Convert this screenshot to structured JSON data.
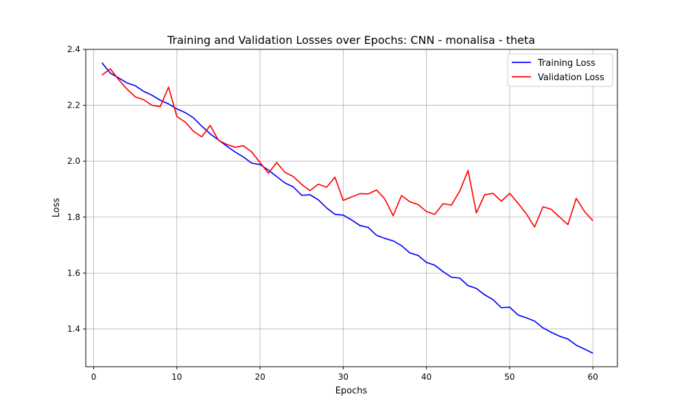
{
  "chart_data": {
    "type": "line",
    "title": "Training and Validation Losses over Epochs: CNN - monalisa - theta",
    "xlabel": "Epochs",
    "ylabel": "Loss",
    "xlim": [
      -0.95,
      62.95
    ],
    "ylim": [
      1.265,
      2.4
    ],
    "xticks": [
      0,
      10,
      20,
      30,
      40,
      50,
      60
    ],
    "yticks": [
      1.4,
      1.6,
      1.8,
      2.0,
      2.2,
      2.4
    ],
    "ytick_labels": [
      "1.4",
      "1.6",
      "1.8",
      "2.0",
      "2.2",
      "2.4"
    ],
    "grid": true,
    "legend_position": "top-right",
    "x": [
      1,
      2,
      3,
      4,
      5,
      6,
      7,
      8,
      9,
      10,
      11,
      12,
      13,
      14,
      15,
      16,
      17,
      18,
      19,
      20,
      21,
      22,
      23,
      24,
      25,
      26,
      27,
      28,
      29,
      30,
      31,
      32,
      33,
      34,
      35,
      36,
      37,
      38,
      39,
      40,
      41,
      42,
      43,
      44,
      45,
      46,
      47,
      48,
      49,
      50,
      51,
      52,
      53,
      54,
      55,
      56,
      57,
      58,
      59,
      60
    ],
    "series": [
      {
        "name": "Training Loss",
        "color": "#0000ff",
        "values": [
          2.352,
          2.315,
          2.298,
          2.28,
          2.27,
          2.25,
          2.236,
          2.218,
          2.205,
          2.187,
          2.174,
          2.155,
          2.125,
          2.098,
          2.076,
          2.054,
          2.033,
          2.015,
          1.993,
          1.988,
          1.968,
          1.945,
          1.922,
          1.908,
          1.878,
          1.88,
          1.862,
          1.833,
          1.81,
          1.807,
          1.79,
          1.77,
          1.763,
          1.735,
          1.724,
          1.715,
          1.698,
          1.672,
          1.663,
          1.638,
          1.628,
          1.605,
          1.585,
          1.582,
          1.555,
          1.545,
          1.522,
          1.505,
          1.476,
          1.478,
          1.45,
          1.44,
          1.428,
          1.404,
          1.388,
          1.374,
          1.364,
          1.342,
          1.328,
          1.313
        ]
      },
      {
        "name": "Validation Loss",
        "color": "#ff0000",
        "values": [
          2.308,
          2.33,
          2.292,
          2.258,
          2.23,
          2.22,
          2.2,
          2.195,
          2.265,
          2.16,
          2.14,
          2.107,
          2.087,
          2.128,
          2.075,
          2.06,
          2.05,
          2.055,
          2.033,
          1.995,
          1.957,
          1.995,
          1.96,
          1.945,
          1.917,
          1.895,
          1.918,
          1.907,
          1.943,
          1.86,
          1.872,
          1.884,
          1.883,
          1.897,
          1.865,
          1.805,
          1.877,
          1.855,
          1.845,
          1.82,
          1.81,
          1.848,
          1.843,
          1.893,
          1.967,
          1.815,
          1.88,
          1.885,
          1.857,
          1.885,
          1.85,
          1.812,
          1.765,
          1.837,
          1.828,
          1.8,
          1.773,
          1.867,
          1.82,
          1.787
        ]
      }
    ]
  }
}
